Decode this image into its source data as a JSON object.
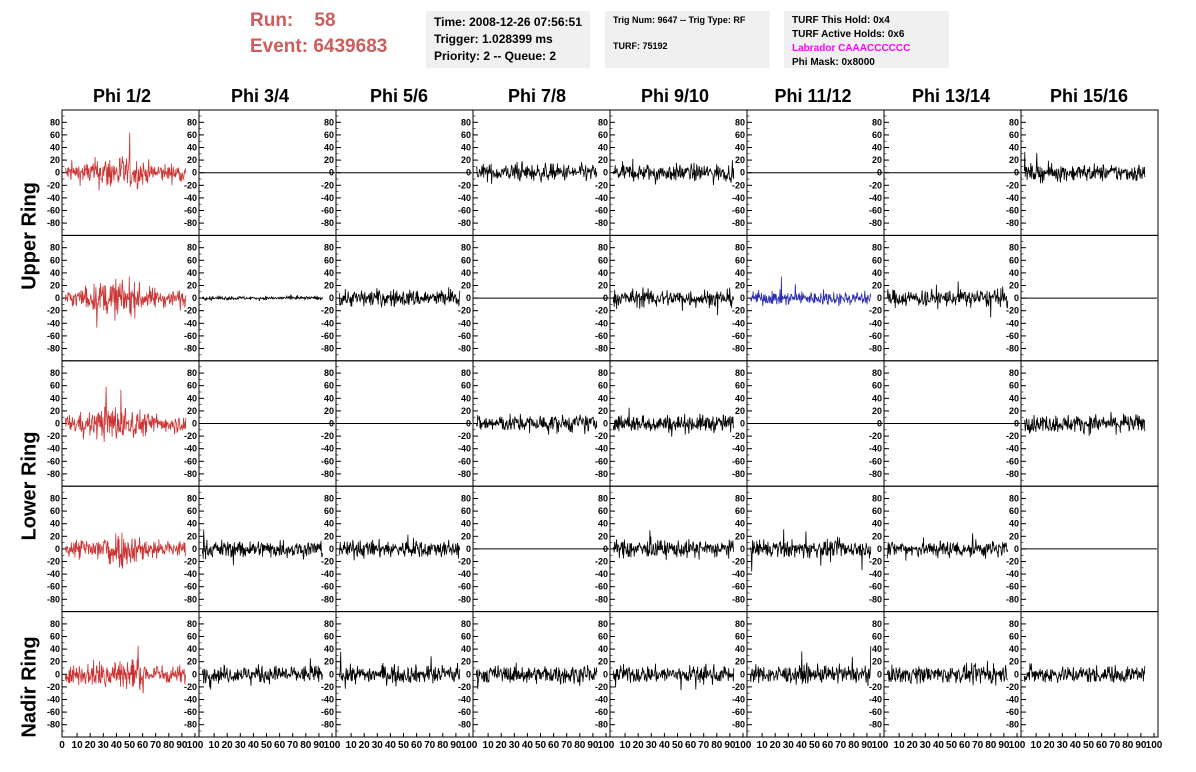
{
  "header": {
    "run_label": "Run:",
    "run_value": "58",
    "event_label": "Event:",
    "event_value": "6439683",
    "time": "Time: 2008-12-26 07:56:51",
    "trigger": "Trigger: 1.028399 ms",
    "priority": "Priority: 2 -- Queue: 2",
    "trig_num": "Trig Num: 9647 -- Trig Type: RF",
    "turf": "TURF: 75192",
    "turf_this_hold": "TURF This Hold: 0x4",
    "turf_active_holds": "TURF Active Holds: 0x6",
    "labrador": "Labrador CAAACCCCCC",
    "phi_mask": "Phi Mask: 0x8000"
  },
  "columns": [
    "Phi 1/2",
    "Phi 3/4",
    "Phi 5/6",
    "Phi 7/8",
    "Phi 9/10",
    "Phi 11/12",
    "Phi 13/14",
    "Phi 15/16"
  ],
  "rings": [
    "Upper Ring",
    "Lower Ring",
    "Nadir Ring"
  ],
  "y_ticks": [
    80,
    60,
    40,
    20,
    0,
    -20,
    -40,
    -60,
    -80
  ],
  "x_tick_labels": [
    "10",
    "20",
    "30",
    "40",
    "50",
    "60",
    "70",
    "80",
    "90",
    "100"
  ],
  "x_axis_origin": "0",
  "colors": {
    "trigger_trace": "#cc3333",
    "highlight_trace": "#2b2bb0",
    "normal_trace": "#000000",
    "run_text": "#cd5c5c",
    "labrador_text": "#ff00ff",
    "info_bg": "#f0f0f0"
  },
  "chart_data": {
    "type": "line",
    "x_range": [
      0,
      100
    ],
    "y_range": [
      -90,
      90
    ],
    "panel_rows": 5,
    "panel_cols": 8,
    "traces": [
      [
        "red",
        "flat",
        "flat",
        "black",
        "black",
        "flat",
        "flat",
        "black"
      ],
      [
        "red",
        "black_small",
        "black",
        "flat",
        "black",
        "blue",
        "black",
        "flat"
      ],
      [
        "red",
        "flat",
        "flat",
        "black",
        "black",
        "flat",
        "flat",
        "black"
      ],
      [
        "red",
        "black",
        "black",
        "flat",
        "black",
        "black",
        "black",
        "flat"
      ],
      [
        "red",
        "black",
        "black",
        "black",
        "black",
        "black",
        "black",
        "black"
      ]
    ]
  }
}
